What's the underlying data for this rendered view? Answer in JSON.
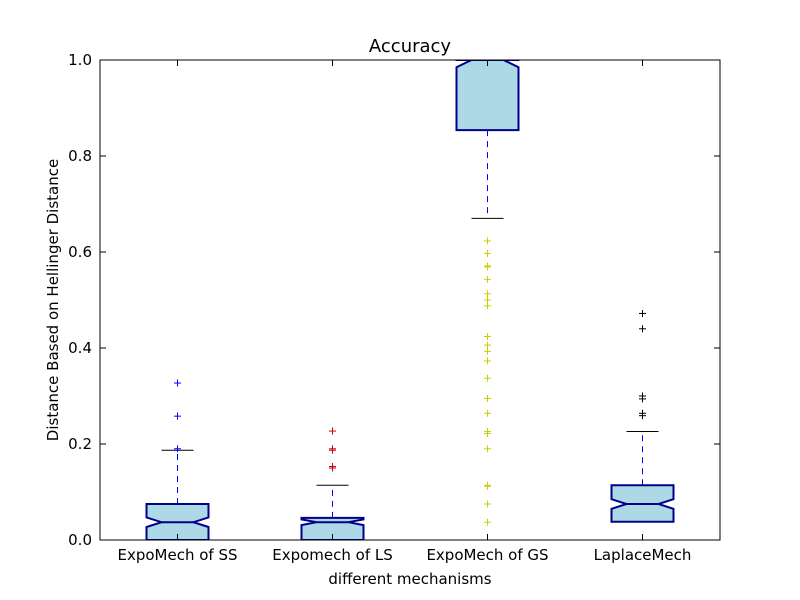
{
  "chart_data": {
    "type": "boxplot",
    "title": "Accuracy",
    "xlabel": "different mechanisms",
    "ylabel": "Distance Based on Hellinger Distance",
    "ylim": [
      0,
      1.0
    ],
    "yticks": [
      0.0,
      0.2,
      0.4,
      0.6,
      0.8,
      1.0
    ],
    "ytick_labels": [
      "0.0",
      "0.2",
      "0.4",
      "0.6",
      "0.8",
      "1.0"
    ],
    "grid": false,
    "notched": true,
    "box_fill": "#add8e6",
    "box_edge": "#00008b",
    "median_color": "#00008b",
    "whisker_color": "#0000ff",
    "cap_color": "#000000",
    "categories": [
      "ExpoMech of SS",
      "Expomech of LS",
      "ExpoMech of GS",
      "LaplaceMech"
    ],
    "boxes": [
      {
        "q1": 0.0,
        "median": 0.037,
        "q3": 0.075,
        "notch_low": 0.027,
        "notch_high": 0.047,
        "whisker_low": 0.0,
        "whisker_high": 0.187,
        "outliers": [
          0.19,
          0.258,
          0.327
        ],
        "outlier_color": "#0000ff"
      },
      {
        "q1": 0.0,
        "median": 0.037,
        "q3": 0.046,
        "notch_low": 0.031,
        "notch_high": 0.043,
        "whisker_low": 0.0,
        "whisker_high": 0.114,
        "outliers": [
          0.15,
          0.153,
          0.187,
          0.19,
          0.227
        ],
        "outlier_color": "#cc0000"
      },
      {
        "q1": 0.854,
        "median": 1.0,
        "q3": 1.0,
        "notch_low": 0.985,
        "notch_high": 1.015,
        "whisker_low": 0.67,
        "whisker_high": 1.0,
        "outliers": [
          0.037,
          0.075,
          0.112,
          0.114,
          0.19,
          0.222,
          0.226,
          0.264,
          0.295,
          0.337,
          0.373,
          0.393,
          0.406,
          0.424,
          0.488,
          0.5,
          0.513,
          0.543,
          0.569,
          0.571,
          0.597,
          0.623
        ],
        "outlier_color": "#cccc00"
      },
      {
        "q1": 0.038,
        "median": 0.075,
        "q3": 0.114,
        "notch_low": 0.065,
        "notch_high": 0.085,
        "whisker_low": 0.038,
        "whisker_high": 0.226,
        "outliers": [
          0.259,
          0.264,
          0.294,
          0.3,
          0.44,
          0.472
        ],
        "outlier_color": "#000000"
      }
    ]
  }
}
